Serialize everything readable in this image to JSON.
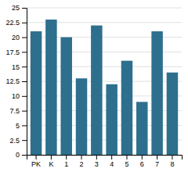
{
  "chart_data": {
    "type": "bar",
    "categories": [
      "PK",
      "K",
      "1",
      "2",
      "3",
      "4",
      "5",
      "6",
      "7",
      "8"
    ],
    "values": [
      21,
      23,
      20,
      13,
      22,
      12,
      16,
      9,
      21,
      14
    ],
    "color": "#2e6f8e",
    "ylim": [
      0,
      25
    ],
    "yticks": [
      0,
      2.5,
      5,
      7.5,
      10,
      12.5,
      15,
      17.5,
      20,
      22.5,
      25
    ],
    "grid": true
  }
}
